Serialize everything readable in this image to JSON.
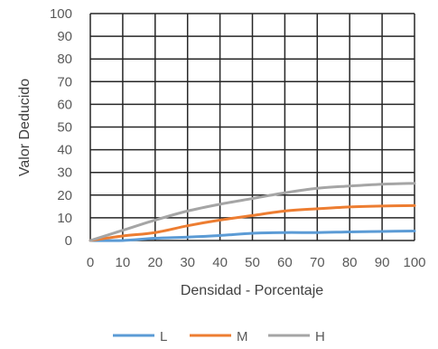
{
  "chart_data": {
    "type": "line",
    "title": "",
    "xlabel": "Densidad - Porcentaje",
    "ylabel": "Valor Deducido",
    "xlim": [
      0,
      100
    ],
    "ylim": [
      0,
      100
    ],
    "x_ticks": [
      0,
      10,
      20,
      30,
      40,
      50,
      60,
      70,
      80,
      90,
      100
    ],
    "y_ticks": [
      0,
      10,
      20,
      30,
      40,
      50,
      60,
      70,
      80,
      90,
      100
    ],
    "grid": true,
    "legend_position": "bottom",
    "x": [
      0,
      10,
      20,
      30,
      40,
      50,
      60,
      70,
      80,
      90,
      100
    ],
    "series": [
      {
        "name": "L",
        "color": "#5B9BD5",
        "values": [
          0,
          0,
          1,
          1.5,
          2.2,
          3.2,
          3.5,
          3.5,
          3.8,
          4,
          4.2
        ]
      },
      {
        "name": "M",
        "color": "#ED7D31",
        "values": [
          0,
          2,
          3.5,
          6.5,
          9,
          11,
          13,
          14,
          14.8,
          15.2,
          15.4
        ]
      },
      {
        "name": "H",
        "color": "#A5A5A5",
        "values": [
          0,
          4.5,
          9,
          13,
          16,
          18.5,
          21,
          23,
          24,
          24.8,
          25.2
        ]
      }
    ]
  }
}
